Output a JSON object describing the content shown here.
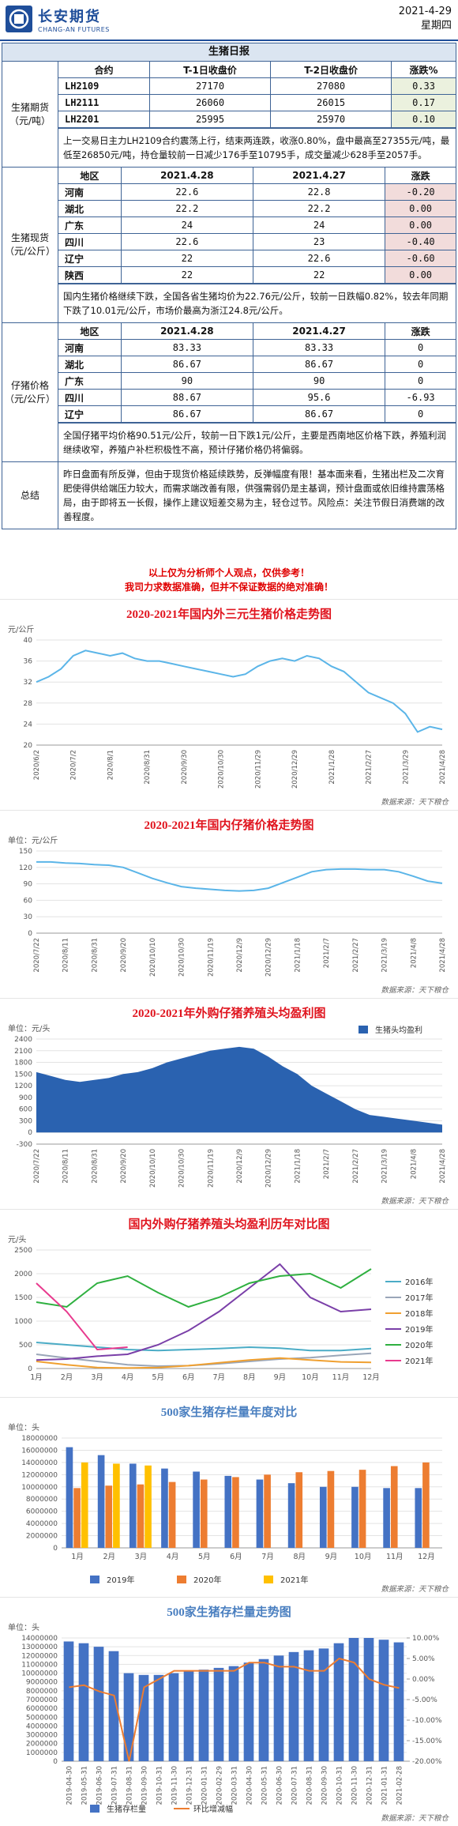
{
  "header": {
    "logo": "长安期货",
    "logo_en": "CHANG-AN FUTURES",
    "date": "2021-4-29",
    "weekday": "星期四"
  },
  "report_title": "生猪日报",
  "sections": [
    {
      "label": "生猪期货（元/吨）",
      "columns": [
        "合约",
        "T-1日收盘价",
        "T-2日收盘价",
        "涨跌%"
      ],
      "rows": [
        [
          "LH2109",
          "27170",
          "27080",
          "0.33"
        ],
        [
          "LH2111",
          "26060",
          "26015",
          "0.17"
        ],
        [
          "LH2201",
          "25995",
          "25970",
          "0.10"
        ]
      ],
      "change_color": "#ebf1de",
      "note": "上一交易日主力LH2109合约震荡上行，结束两连跌，收涨0.80%，盘中最高至27355元/吨，最低至26850元/吨，持仓量较前一日减少176手至10795手，成交量减少628手至2057手。"
    },
    {
      "label": "生猪现货（元/公斤）",
      "columns": [
        "地区",
        "2021.4.28",
        "2021.4.27",
        "涨跌"
      ],
      "rows": [
        [
          "河南",
          "22.6",
          "22.8",
          "-0.20"
        ],
        [
          "湖北",
          "22.2",
          "22.2",
          "0.00"
        ],
        [
          "广东",
          "24",
          "24",
          "0.00"
        ],
        [
          "四川",
          "22.6",
          "23",
          "-0.40"
        ],
        [
          "辽宁",
          "22",
          "22.6",
          "-0.60"
        ],
        [
          "陕西",
          "22",
          "22",
          "0.00"
        ]
      ],
      "change_color": "#f2dcdb",
      "note": "国内生猪价格继续下跌，全国各省生猪均价为22.76元/公斤，较前一日跌幅0.82%，较去年同期下跌了10.01元/公斤，市场价最高为浙江24.8元/公斤。"
    },
    {
      "label": "仔猪价格（元/公斤）",
      "columns": [
        "地区",
        "2021.4.28",
        "2021.4.27",
        "涨跌"
      ],
      "rows": [
        [
          "河南",
          "83.33",
          "83.33",
          "0"
        ],
        [
          "湖北",
          "86.67",
          "86.67",
          "0"
        ],
        [
          "广东",
          "90",
          "90",
          "0"
        ],
        [
          "四川",
          "88.67",
          "95.6",
          "-6.93"
        ],
        [
          "辽宁",
          "86.67",
          "86.67",
          "0"
        ]
      ],
      "note": "全国仔猪平均价格90.51元/公斤，较前一日下跌1元/公斤，主要是西南地区价格下跌，养殖利润继续收窄，养殖户补栏积极性不高，预计仔猪价格仍将偏弱。"
    }
  ],
  "summary": {
    "label": "总结",
    "text": "昨日盘面有所反弹，但由于现货价格延续跌势，反弹幅度有限！基本面来看，生猪出栏及二次育肥使得供给端压力较大，而需求端改善有限，供强需弱仍是主基调，预计盘面或依旧维持震荡格局，由于即将五一长假，操作上建议短差交易为主，轻仓过节。风险点：关注节假日消费端的改善程度。"
  },
  "disclaimer": [
    "以上仅为分析师个人观点，仅供参考！",
    "我司力求数据准确，但并不保证数据的绝对准确！"
  ],
  "chart_data": [
    {
      "type": "line",
      "title": "2020-2021年国内外三元生猪价格走势图",
      "title_color": "#e0141e",
      "unit": "元/公斤",
      "source": "数据来源：天下粮仓",
      "categories": [
        "2020/6/2",
        null,
        null,
        "2020/7/2",
        null,
        null,
        "2020/8/1",
        null,
        null,
        "2020/8/31",
        null,
        null,
        "2020/9/30",
        null,
        null,
        "2020/10/30",
        null,
        null,
        "2020/11/29",
        null,
        null,
        "2020/12/29",
        null,
        null,
        "2021/1/28",
        null,
        null,
        "2021/2/27",
        null,
        null,
        "2021/3/29",
        null,
        null,
        "2021/4/28"
      ],
      "values": [
        32,
        33,
        34.5,
        37,
        38,
        37.5,
        37,
        37.5,
        36.5,
        36,
        36,
        35.5,
        35,
        34.5,
        34,
        33.5,
        33,
        33.5,
        35,
        36,
        36.5,
        36,
        37,
        36.5,
        35,
        34,
        32,
        30,
        29,
        28,
        26,
        22.5,
        23.5,
        23
      ],
      "color": "#5bb5e8",
      "ylim": [
        20,
        40
      ],
      "yticks": [
        20,
        24,
        28,
        32,
        36,
        40
      ],
      "grid": true
    },
    {
      "type": "line",
      "title": "2020-2021年国内仔猪价格走势图",
      "title_color": "#e0141e",
      "unit": "单位：元/公斤",
      "source": "数据来源：天下粮仓",
      "categories": [
        "2020/7/22",
        null,
        "2020/8/11",
        null,
        "2020/8/31",
        null,
        "2020/9/20",
        null,
        "2020/10/10",
        null,
        "2020/10/30",
        null,
        "2020/11/19",
        null,
        "2020/12/9",
        null,
        "2020/12/29",
        null,
        "2021/1/18",
        null,
        "2021/2/7",
        null,
        "2021/2/27",
        null,
        "2021/3/19",
        null,
        "2021/4/8",
        null,
        "2021/4/28"
      ],
      "values": [
        130,
        130,
        128,
        127,
        125,
        124,
        120,
        110,
        100,
        92,
        85,
        82,
        80,
        78,
        77,
        78,
        82,
        92,
        102,
        112,
        116,
        117,
        117,
        116,
        116,
        112,
        104,
        95,
        91
      ],
      "color": "#5bb5e8",
      "ylim": [
        0,
        150
      ],
      "yticks": [
        0,
        30,
        60,
        90,
        120,
        150
      ],
      "grid": true
    },
    {
      "type": "area",
      "title": "2020-2021年外购仔猪养殖头均盈利图",
      "title_color": "#e0141e",
      "unit": "单位：元/头",
      "source": "数据来源：天下粮仓",
      "categories": [
        "2020/7/22",
        null,
        "2020/8/11",
        null,
        "2020/8/31",
        null,
        "2020/9/20",
        null,
        "2020/10/10",
        null,
        "2020/10/30",
        null,
        "2020/11/19",
        null,
        "2020/12/9",
        null,
        "2020/12/29",
        null,
        "2021/1/18",
        null,
        "2021/2/7",
        null,
        "2021/2/27",
        null,
        "2021/3/19",
        null,
        "2021/4/8",
        null,
        "2021/4/28"
      ],
      "series": [
        {
          "name": "生猪头均盈利",
          "color": "#2a62b0",
          "values": [
            1550,
            1450,
            1350,
            1300,
            1350,
            1400,
            1500,
            1550,
            1650,
            1800,
            1900,
            2000,
            2100,
            2150,
            2200,
            2150,
            1950,
            1700,
            1500,
            1200,
            1000,
            800,
            600,
            450,
            400,
            350,
            300,
            250,
            200
          ]
        }
      ],
      "ylim": [
        -300,
        2400
      ],
      "yticks": [
        -300,
        0,
        300,
        600,
        900,
        1200,
        1500,
        1800,
        2100,
        2400
      ],
      "grid": true,
      "legend": "top-right"
    },
    {
      "type": "line",
      "title": "国内外购仔猪养殖头均盈利历年对比图",
      "title_color": "#e0141e",
      "unit": "元/头",
      "categories": [
        "1月",
        "2月",
        "3月",
        "4月",
        "5月",
        "6月",
        "7月",
        "8月",
        "9月",
        "10月",
        "11月",
        "12月"
      ],
      "series": [
        {
          "name": "2016年",
          "color": "#4bacc6",
          "values": [
            550,
            500,
            450,
            400,
            380,
            400,
            420,
            450,
            430,
            380,
            380,
            420
          ]
        },
        {
          "name": "2017年",
          "color": "#9aa6b8",
          "values": [
            300,
            220,
            150,
            80,
            50,
            60,
            100,
            150,
            200,
            230,
            280,
            320
          ]
        },
        {
          "name": "2018年",
          "color": "#f0a030",
          "values": [
            150,
            80,
            20,
            10,
            20,
            60,
            120,
            180,
            220,
            180,
            140,
            130
          ]
        },
        {
          "name": "2019年",
          "color": "#7a3fa8",
          "values": [
            180,
            200,
            260,
            300,
            500,
            800,
            1200,
            1700,
            2200,
            1500,
            1200,
            1250
          ]
        },
        {
          "name": "2020年",
          "color": "#2fb040",
          "values": [
            1400,
            1300,
            1800,
            1950,
            1600,
            1300,
            1500,
            1800,
            1950,
            2000,
            1700,
            2100
          ]
        },
        {
          "name": "2021年",
          "color": "#e83a8e",
          "values": [
            1800,
            1200,
            400,
            450,
            null,
            null,
            null,
            null,
            null,
            null,
            null,
            null
          ]
        }
      ],
      "ylim": [
        0,
        2500
      ],
      "yticks": [
        0,
        500,
        1000,
        1500,
        2000,
        2500
      ],
      "grid": true,
      "legend": "right"
    },
    {
      "type": "bar",
      "title": "500家生猪存栏量年度对比",
      "title_color": "#4a7fc0",
      "unit": "单位：头",
      "source": "数据来源：天下粮仓",
      "categories": [
        "1月",
        "2月",
        "3月",
        "4月",
        "5月",
        "6月",
        "7月",
        "8月",
        "9月",
        "10月",
        "11月",
        "12月"
      ],
      "series": [
        {
          "name": "2019年",
          "color": "#4472c4",
          "values": [
            16500000,
            15200000,
            13800000,
            13000000,
            12500000,
            11800000,
            11200000,
            10600000,
            10000000,
            10000000,
            9800000,
            9800000
          ]
        },
        {
          "name": "2020年",
          "color": "#ed7d31",
          "values": [
            9800000,
            10200000,
            10400000,
            10800000,
            11200000,
            11600000,
            12000000,
            12400000,
            12600000,
            12800000,
            13400000,
            14000000
          ]
        },
        {
          "name": "2021年",
          "color": "#ffc000",
          "values": [
            14000000,
            13800000,
            13500000,
            null,
            null,
            null,
            null,
            null,
            null,
            null,
            null,
            null
          ]
        }
      ],
      "ylim": [
        0,
        18000000
      ],
      "yticks": [
        0,
        2000000,
        4000000,
        6000000,
        8000000,
        10000000,
        12000000,
        14000000,
        16000000,
        18000000
      ],
      "grid": true,
      "legend": "bottom"
    },
    {
      "type": "bar",
      "title": "500家生猪存栏量走势图",
      "title_color": "#4a7fc0",
      "unit": "单位：头",
      "source": "数据来源：天下粮仓",
      "categories": [
        "2019-04-30",
        "2019-05-31",
        "2019-06-30",
        "2019-07-31",
        "2019-08-31",
        "2019-09-30",
        "2019-10-31",
        "2019-11-30",
        "2019-12-31",
        "2020-01-31",
        "2020-02-29",
        "2020-03-31",
        "2020-04-30",
        "2020-05-31",
        "2020-06-30",
        "2020-07-31",
        "2020-08-31",
        "2020-09-30",
        "2020-10-31",
        "2020-11-30",
        "2020-12-31",
        "2021-01-31",
        "2021-02-28"
      ],
      "series": [
        {
          "name": "生猪存栏量",
          "color": "#4472c4",
          "values": [
            13600000,
            13400000,
            13000000,
            12500000,
            10000000,
            9800000,
            9800000,
            10000000,
            10200000,
            10400000,
            10600000,
            10800000,
            11200000,
            11600000,
            12000000,
            12400000,
            12600000,
            12800000,
            13400000,
            14000000,
            14000000,
            13800000,
            13500000
          ]
        },
        {
          "name": "环比增减幅",
          "color": "#ed7d31",
          "type": "line",
          "axis": "y2",
          "values": [
            -2,
            -1.5,
            -3,
            -4,
            -20,
            -2,
            0,
            2,
            2,
            2,
            2,
            2,
            4,
            4,
            3,
            3,
            2,
            2,
            5,
            4,
            0,
            -1.4,
            -2.2
          ]
        }
      ],
      "ylim": [
        0,
        14000000
      ],
      "yticks": [
        0,
        1000000,
        2000000,
        3000000,
        4000000,
        5000000,
        6000000,
        7000000,
        8000000,
        9000000,
        10000000,
        11000000,
        12000000,
        13000000,
        14000000
      ],
      "y2lim": [
        -20,
        10
      ],
      "y2ticks": [
        {
          "value": -20,
          "label": "-20.00%"
        },
        {
          "value": -15,
          "label": "-15.00%"
        },
        {
          "value": -10,
          "label": "-10.00%"
        },
        {
          "value": -5,
          "label": "-5.00%"
        },
        {
          "value": 0,
          "label": "0.00%"
        },
        {
          "value": 5,
          "label": "5.00%"
        },
        {
          "value": 10,
          "label": "10.00%"
        }
      ],
      "grid": true,
      "legend": "bottom"
    }
  ]
}
